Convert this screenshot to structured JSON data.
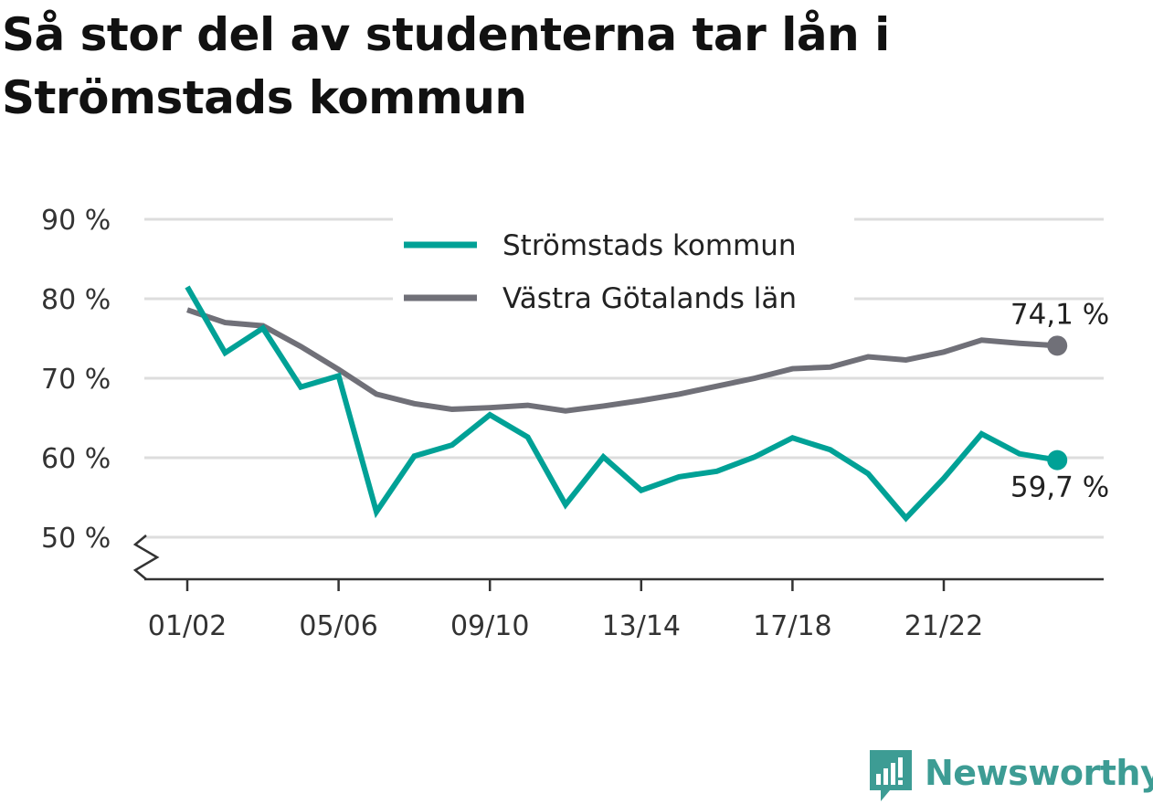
{
  "title": "Så stor del av studenterna tar lån i Strömstads kommun",
  "brand": {
    "name": "Newsworthy",
    "color": "#3d9c94",
    "icon": "bar-chart-speech-bubble-icon"
  },
  "colors": {
    "stromstad": "#00a196",
    "vastra_gotaland": "#707078",
    "grid": "#dddddd",
    "axis": "#333333"
  },
  "chart_data": {
    "type": "line",
    "title": "Så stor del av studenterna tar lån i Strömstads kommun",
    "xlabel": "",
    "ylabel": "",
    "ylim": [
      45,
      90
    ],
    "y_ticks": [
      {
        "value": 50,
        "label": "50 %"
      },
      {
        "value": 60,
        "label": "60 %"
      },
      {
        "value": 70,
        "label": "70 %"
      },
      {
        "value": 80,
        "label": "80 %"
      },
      {
        "value": 90,
        "label": "90 %"
      }
    ],
    "y_axis_break": true,
    "x_ticks": [
      "01/02",
      "05/06",
      "09/10",
      "13/14",
      "17/18",
      "21/22"
    ],
    "categories": [
      "01/02",
      "02/03",
      "03/04",
      "04/05",
      "05/06",
      "06/07",
      "07/08",
      "08/09",
      "09/10",
      "10/11",
      "11/12",
      "12/13",
      "13/14",
      "14/15",
      "15/16",
      "16/17",
      "17/18",
      "18/19",
      "19/20",
      "20/21",
      "21/22",
      "22/23",
      "23/24",
      "24/25"
    ],
    "series": [
      {
        "name": "Strömstads kommun",
        "color": "#00a196",
        "values": [
          81.5,
          73.2,
          76.3,
          68.9,
          70.3,
          53.2,
          60.2,
          61.6,
          65.4,
          62.6,
          54.1,
          60.1,
          55.9,
          57.6,
          58.3,
          60.1,
          62.5,
          61.0,
          58.0,
          52.4,
          57.4,
          63.0,
          60.5,
          59.7
        ],
        "end_label": "59,7 %"
      },
      {
        "name": "Västra Götalands län",
        "color": "#707078",
        "values": [
          78.6,
          77.0,
          76.6,
          74.0,
          71.1,
          68.0,
          66.8,
          66.1,
          66.3,
          66.6,
          65.9,
          66.5,
          67.2,
          68.0,
          69.0,
          70.0,
          71.2,
          71.4,
          72.7,
          72.3,
          73.3,
          74.8,
          74.4,
          74.1
        ],
        "end_label": "74,1 %"
      }
    ],
    "legend": {
      "position": "top-center"
    },
    "grid": true
  }
}
